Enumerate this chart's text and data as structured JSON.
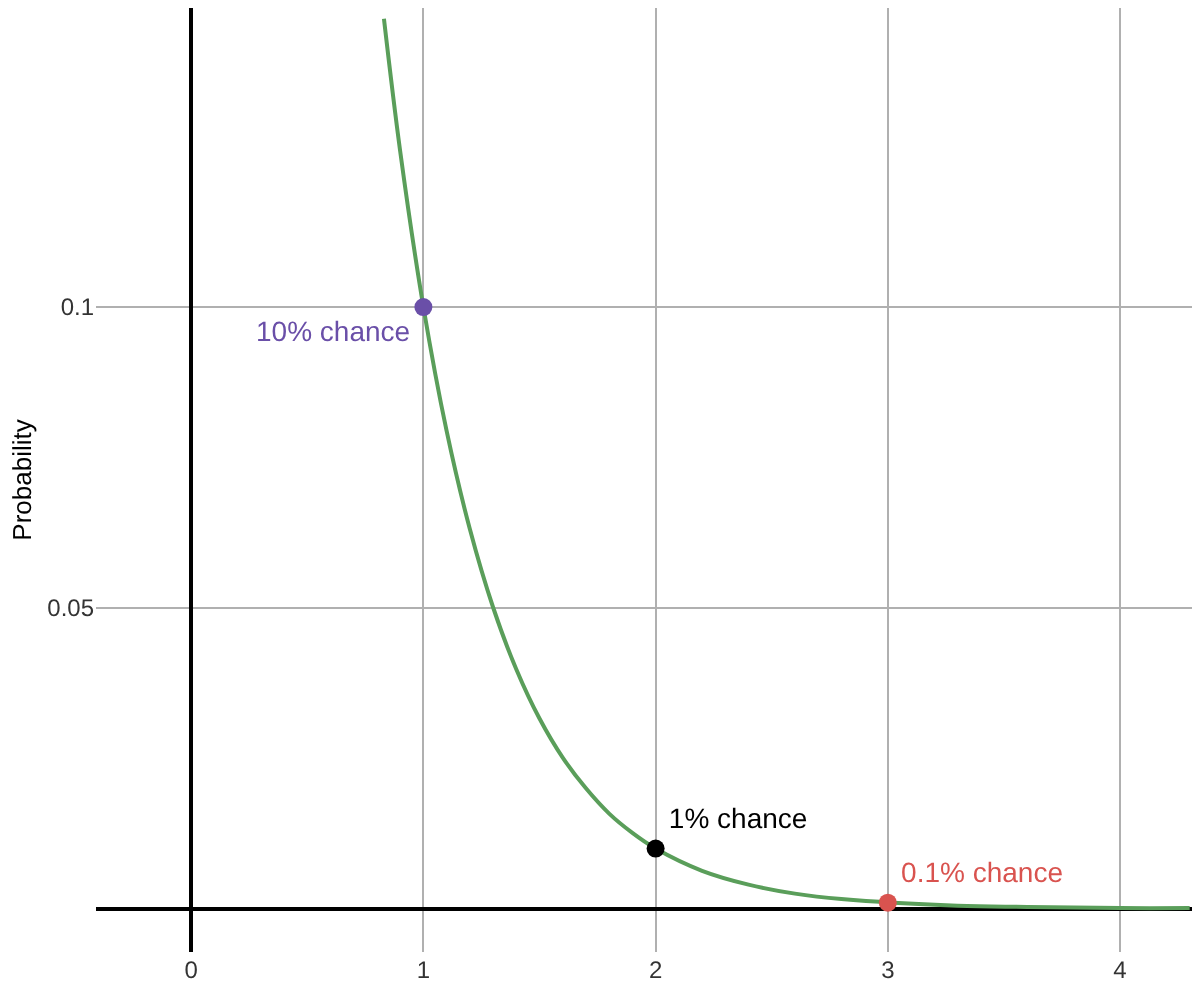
{
  "chart_data": {
    "type": "line",
    "ylabel": "Probability",
    "xlim": [
      -0.41,
      4.31
    ],
    "ylim": [
      -0.0072,
      0.1497
    ],
    "xticks": [
      {
        "value": 0,
        "label": "0"
      },
      1,
      2,
      3,
      4
    ],
    "yticks": [
      {
        "value": 0,
        "label": null
      },
      0.05,
      0.1
    ],
    "grid": true,
    "legend": false,
    "marker": "none",
    "line_style": "solid",
    "series": [
      {
        "color": "#5a9e5a",
        "x": [
          0.83,
          0.9,
          1.0,
          1.1,
          1.2,
          1.3,
          1.4,
          1.5,
          1.6,
          1.7,
          1.8,
          1.9,
          2.0,
          2.2,
          2.4,
          2.6,
          2.8,
          3.3,
          3.6,
          4.0,
          4.3
        ],
        "values": [
          0.1479,
          0.1259,
          0.1,
          0.0794,
          0.0631,
          0.0501,
          0.0398,
          0.0316,
          0.0251,
          0.02,
          0.0158,
          0.0126,
          0.01,
          0.0063,
          0.004,
          0.0025,
          0.0016,
          0.0005,
          0.0003,
          0.0001,
          0.0001
        ]
      },
      {
        "type": "scatter",
        "name": "10% chance",
        "color": "#6a4fa8",
        "marker": "circle",
        "x": [
          1
        ],
        "values": [
          0.1
        ]
      },
      {
        "type": "scatter",
        "name": "1% chance",
        "color": "#000000",
        "marker": "circle",
        "x": [
          2
        ],
        "values": [
          0.01
        ]
      },
      {
        "type": "scatter",
        "name": "0.1% chance",
        "color": "#d9534f",
        "marker": "circle",
        "x": [
          3
        ],
        "values": [
          0.001
        ]
      }
    ]
  }
}
